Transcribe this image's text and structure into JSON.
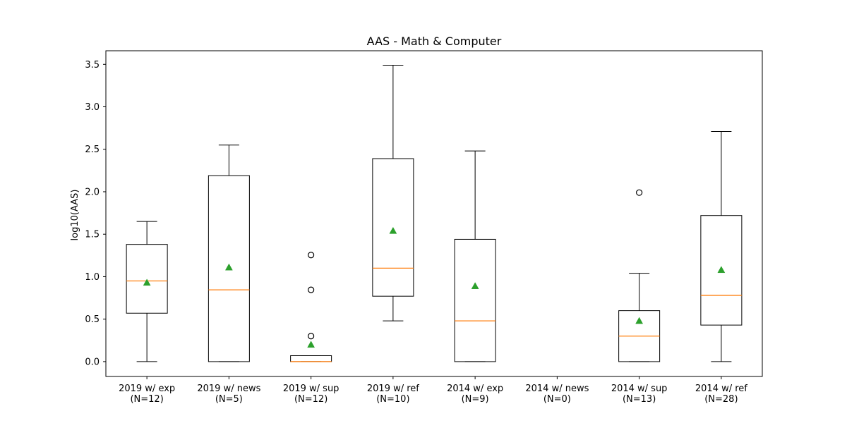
{
  "chart_data": {
    "type": "box",
    "title": "AAS - Math & Computer",
    "ylabel": "log10(AAS)",
    "ylim": [
      -0.175,
      3.66
    ],
    "yticks": [
      "0.0",
      "0.5",
      "1.0",
      "1.5",
      "2.0",
      "2.5",
      "3.0",
      "3.5"
    ],
    "categories": [
      {
        "name": "2019 w/ exp",
        "n_label": "(N=12)"
      },
      {
        "name": "2019 w/ news",
        "n_label": "(N=5)"
      },
      {
        "name": "2019 w/ sup",
        "n_label": "(N=12)"
      },
      {
        "name": "2019 w/ ref",
        "n_label": "(N=10)"
      },
      {
        "name": "2014 w/ exp",
        "n_label": "(N=9)"
      },
      {
        "name": "2014 w/ news",
        "n_label": "(N=0)"
      },
      {
        "name": "2014 w/ sup",
        "n_label": "(N=13)"
      },
      {
        "name": "2014 w/ ref",
        "n_label": "(N=28)"
      }
    ],
    "boxes": [
      {
        "whislo": 0.0,
        "q1": 0.57,
        "med": 0.95,
        "q3": 1.38,
        "whishi": 1.65,
        "mean": 0.93,
        "fliers": []
      },
      {
        "whislo": 0.0,
        "q1": 0.0,
        "med": 0.845,
        "q3": 2.19,
        "whishi": 2.55,
        "mean": 1.11,
        "fliers": []
      },
      {
        "whislo": 0.0,
        "q1": 0.0,
        "med": 0.0,
        "q3": 0.07,
        "whishi": 0.07,
        "mean": 0.2,
        "fliers": [
          0.3,
          0.845,
          1.255
        ]
      },
      {
        "whislo": 0.48,
        "q1": 0.77,
        "med": 1.1,
        "q3": 2.39,
        "whishi": 3.49,
        "mean": 1.54,
        "fliers": []
      },
      {
        "whislo": 0.0,
        "q1": 0.0,
        "med": 0.48,
        "q3": 1.44,
        "whishi": 2.48,
        "mean": 0.89,
        "fliers": []
      },
      null,
      {
        "whislo": 0.0,
        "q1": 0.0,
        "med": 0.3,
        "q3": 0.6,
        "whishi": 1.04,
        "mean": 0.48,
        "fliers": [
          1.99
        ]
      },
      {
        "whislo": 0.0,
        "q1": 0.43,
        "med": 0.78,
        "q3": 1.72,
        "whishi": 2.71,
        "mean": 1.08,
        "fliers": []
      }
    ],
    "colors": {
      "box": "#000000",
      "median": "#ff7f0e",
      "mean": "#2ca02c"
    },
    "grid": false,
    "legend": "none"
  }
}
